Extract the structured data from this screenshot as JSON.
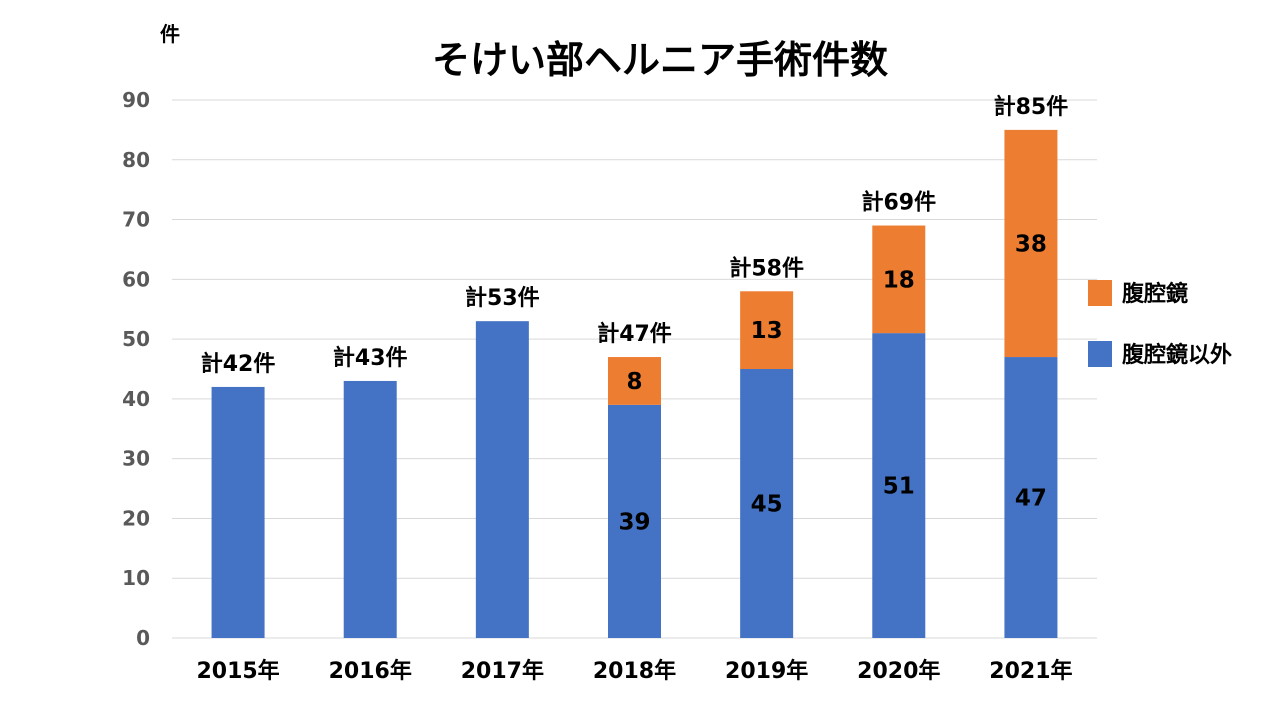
{
  "chart_data": {
    "type": "bar",
    "stacked": true,
    "title": "そけい部ヘルニア手術件数",
    "ylabel": "件",
    "xlabel": "",
    "ylim": [
      0,
      90
    ],
    "yticks": [
      0,
      10,
      20,
      30,
      40,
      50,
      60,
      70,
      80,
      90
    ],
    "grid": true,
    "legend_position": "right",
    "categories": [
      "2015年",
      "2016年",
      "2017年",
      "2018年",
      "2019年",
      "2020年",
      "2021年"
    ],
    "series": [
      {
        "name": "腹腔鏡以外",
        "color": "#4472C4",
        "values": [
          42,
          43,
          53,
          39,
          45,
          51,
          47
        ],
        "labels": [
          "",
          "",
          "",
          "39",
          "45",
          "51",
          "47"
        ]
      },
      {
        "name": "腹腔鏡",
        "color": "#ED7D31",
        "values": [
          0,
          0,
          0,
          8,
          13,
          18,
          38
        ],
        "labels": [
          "",
          "",
          "",
          "8",
          "13",
          "18",
          "38"
        ]
      }
    ],
    "totals": [
      42,
      43,
      53,
      47,
      58,
      69,
      85
    ],
    "total_labels": [
      "計42件",
      "計43件",
      "計53件",
      "計47件",
      "計58件",
      "計69件",
      "計85件"
    ],
    "legend": [
      "腹腔鏡",
      "腹腔鏡以外"
    ]
  }
}
